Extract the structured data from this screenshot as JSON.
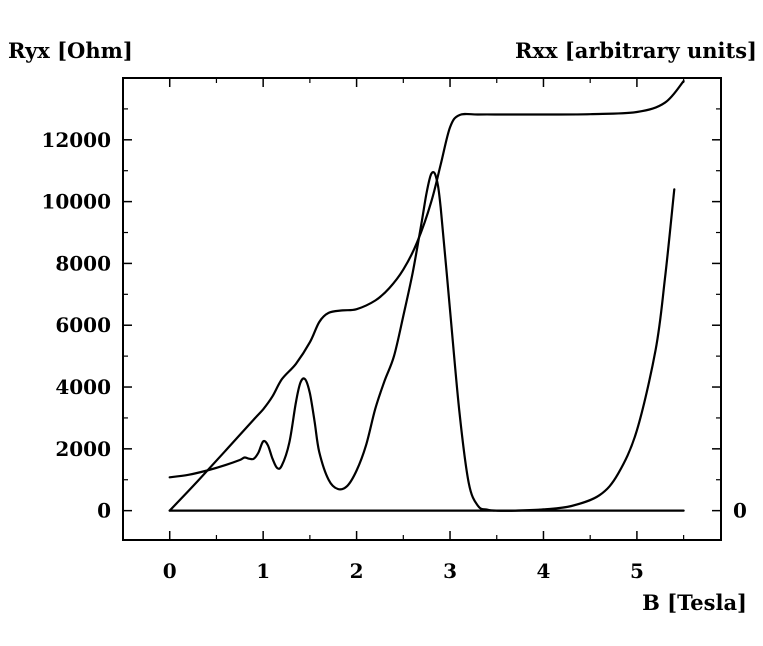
{
  "chart_data": {
    "type": "line",
    "title": "",
    "ylabel_left": "Ryx [Ohm]",
    "ylabel_right": "Rxx [arbitrary units]",
    "xlabel": "B [Tesla]",
    "xlim": [
      -0.5,
      5.9
    ],
    "ylim": [
      -950,
      14000
    ],
    "x_ticks": [
      0,
      1,
      2,
      3,
      4,
      5
    ],
    "y_ticks": [
      0,
      2000,
      4000,
      6000,
      8000,
      10000,
      12000
    ],
    "right_ticks": [
      {
        "value": 0,
        "label": "0"
      }
    ],
    "grid": false,
    "legend": "none",
    "series": [
      {
        "x": [
          0,
          0.3,
          0.6,
          0.9,
          1.0,
          1.1,
          1.2,
          1.35,
          1.5,
          1.6,
          1.7,
          1.85,
          2.0,
          2.2,
          2.35,
          2.5,
          2.65,
          2.8,
          2.9,
          3.0,
          3.1,
          3.3,
          3.6,
          4.0,
          4.5,
          5.0,
          5.3,
          5.5
        ],
        "values": [
          0,
          960,
          1950,
          2950,
          3280,
          3700,
          4250,
          4750,
          5450,
          6100,
          6400,
          6480,
          6520,
          6800,
          7200,
          7800,
          8700,
          10000,
          11200,
          12400,
          12800,
          12820,
          12820,
          12820,
          12830,
          12900,
          13200,
          13900
        ]
      },
      {
        "x": [
          0,
          0.2,
          0.4,
          0.6,
          0.75,
          0.8,
          0.85,
          0.9,
          0.95,
          1.0,
          1.05,
          1.1,
          1.15,
          1.2,
          1.28,
          1.35,
          1.4,
          1.45,
          1.5,
          1.55,
          1.6,
          1.7,
          1.8,
          1.9,
          2.0,
          2.1,
          2.2,
          2.3,
          2.4,
          2.5,
          2.6,
          2.7,
          2.75,
          2.8,
          2.85,
          2.9,
          3.0,
          3.1,
          3.2,
          3.3,
          3.4,
          3.5,
          3.7,
          4.0,
          4.3,
          4.6,
          4.8,
          5.0,
          5.2,
          5.3,
          5.4
        ],
        "values": [
          1080,
          1160,
          1300,
          1480,
          1640,
          1720,
          1680,
          1680,
          1880,
          2240,
          2120,
          1680,
          1380,
          1460,
          2200,
          3500,
          4150,
          4250,
          3800,
          2900,
          1900,
          1000,
          700,
          800,
          1300,
          2100,
          3300,
          4200,
          5000,
          6300,
          7700,
          9400,
          10300,
          10900,
          10800,
          9800,
          6500,
          3200,
          900,
          150,
          30,
          0,
          0,
          40,
          150,
          500,
          1200,
          2600,
          5200,
          7500,
          10400
        ]
      },
      {
        "x": [
          0,
          5.5
        ],
        "values": [
          0,
          0
        ]
      }
    ]
  }
}
